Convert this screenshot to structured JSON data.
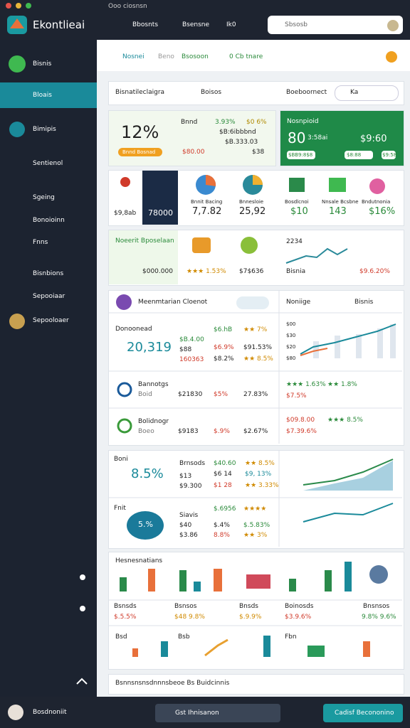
{
  "titlebar": {
    "title": "Ooo ciosnsn"
  },
  "header": {
    "logo": "Ekontlieai",
    "nav": [
      "Bbosnts",
      "Bsensne",
      "Ik0"
    ],
    "search": "Sbsosb"
  },
  "sidebar": {
    "items": [
      "Bisnis",
      "Bloais",
      "Bimipis",
      "Sentienol",
      "Sgeing",
      "Bonoioinn",
      "Fnns",
      "Bisnbions",
      "Sepooiaar",
      "Sepooloaer"
    ],
    "user": "Bosdnoniit"
  },
  "tabs": [
    "Nosnei",
    "Beno",
    "Bsosoon",
    "0 Cb tnare"
  ],
  "filters": {
    "select": "Bisnatileclaigra",
    "status": "Boisos",
    "group": "Boeboornect",
    "search": "Ka"
  },
  "kpi": {
    "value": "12%",
    "pill": "Bnnd Bosnad",
    "label": "Bnnd",
    "rate": "3.93%",
    "change": "$0 6%",
    "line1": "$B:6ibbbnd",
    "line2": "$B.333.03",
    "low": "$80.00",
    "high": "$38"
  },
  "highlight": {
    "title": "Nosnpioid",
    "value": "80",
    "sub": "3:58ai",
    "amount": "$9:60",
    "pills": [
      "$BB9:8$8",
      "$8:88",
      "$9:58"
    ]
  },
  "stats": {
    "first": "$9,8ab",
    "dark": "78000",
    "items": [
      {
        "label": "Bnnit Bacing",
        "value": "7,7.82"
      },
      {
        "label": "Bnnesloie",
        "value": "25,92"
      },
      {
        "label": "Bosdlcnoi",
        "value": "$10"
      },
      {
        "label": "Nnsale Bcsbne",
        "value": "143"
      },
      {
        "label": "Bndutnonia",
        "value": "$16%"
      }
    ]
  },
  "promo": {
    "title": "Noeerit Bposelaan",
    "amount": "$000.000",
    "price": "$7$636",
    "rating": "★★★ 1.53%",
    "count": "2234",
    "trend": "Bisnia",
    "trend_value": "$9.6.20%"
  },
  "overview": {
    "title": "Meenmtarian Cloenot",
    "select": "Noniige",
    "filter": "Bisnis",
    "rows": [
      {
        "name": "Donoonead",
        "value": "20,319",
        "cells": [
          "$B.4.00",
          "$88",
          "160363",
          "$6.hB",
          "$6.9%",
          "$8.2%",
          "★★ 7%",
          "$91.53%",
          "★★ 8.5%"
        ]
      },
      {
        "name": "Bannotgs",
        "sub": "Boid",
        "cells": [
          "$21830",
          "$5%",
          "27.83%",
          "★★★ 1.63%",
          "★★ 1.8%",
          "$7.5%"
        ]
      },
      {
        "name": "Bolidnogr",
        "sub": "Boeo",
        "cells": [
          "$9183",
          "$.9%",
          "$2.67%",
          "$09.8.00",
          "$7.39.6%",
          "★★★ 8.5%"
        ]
      }
    ],
    "axis": [
      "$00",
      "$30",
      "$20",
      "$80"
    ]
  },
  "metrics": {
    "label": "Boni",
    "value": "8.5%",
    "cells": [
      "Brnsods",
      "$13",
      "$9.300",
      "$40.60",
      "$6 14",
      "$1 28",
      "★★ 8.5%",
      "$9, 13%",
      "★★ 3.33%"
    ],
    "label2": "Fnit",
    "bubble": "5.%",
    "cells2": [
      "Siavis",
      "$40",
      "$3.86",
      "$.6956",
      "$.4%",
      "8.8%",
      "★★★★",
      "$.5.83%",
      "★★ 3%"
    ]
  },
  "reports": {
    "title": "Hesnesnatians",
    "labels": [
      "Bsnsds",
      "Bsnsos",
      "Bnsds",
      "Boinosds",
      "Bnsnsos"
    ],
    "values": [
      "$.5.5%",
      "$48 9.8%",
      "$.9.9%",
      "$3.9.6%",
      "9.8% 9.6%"
    ],
    "groups": [
      "Bsd",
      "Bsb",
      "Fbn"
    ]
  },
  "footer_card": {
    "text": "Bsnnsnsnsdnnnsbeoe Bs Buidcinnis"
  },
  "footer": {
    "secondary": "Gst Ihnisanon",
    "primary": "Cadisf Becononino"
  }
}
